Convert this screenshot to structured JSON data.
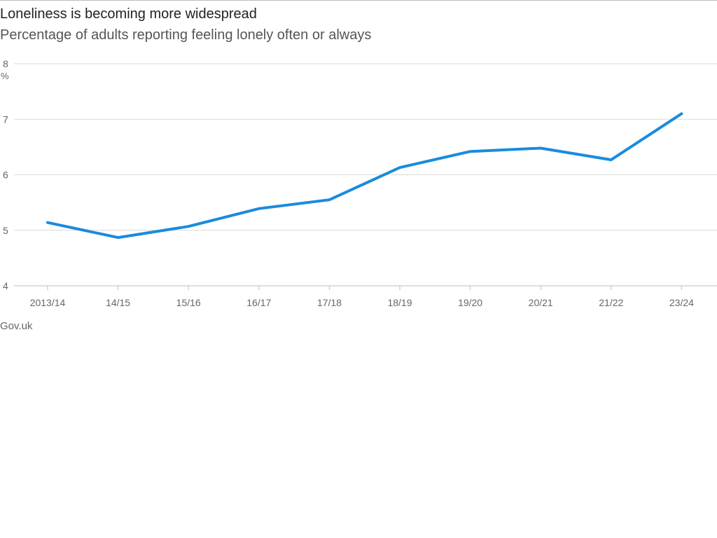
{
  "title": "Loneliness is becoming more widespread",
  "subtitle": "Percentage of adults reporting feeling lonely often or always",
  "source": "Gov.uk",
  "colors": {
    "line": "#1a8bdc",
    "grid": "#d9d9d9",
    "axis": "#bdbdbd",
    "text": "#666666"
  },
  "chart_data": {
    "type": "line",
    "title": "Loneliness is becoming more widespread",
    "subtitle": "Percentage of adults reporting feeling lonely often or always",
    "ylabel": "",
    "y_unit": "%",
    "ylim": [
      4,
      8
    ],
    "yticks": [
      4,
      5,
      6,
      7,
      8
    ],
    "grid": true,
    "categories": [
      "2013/14",
      "14/15",
      "15/16",
      "16/17",
      "17/18",
      "18/19",
      "19/20",
      "20/21",
      "21/22",
      "23/24"
    ],
    "series": [
      {
        "values": [
          5.14,
          4.87,
          5.07,
          5.39,
          5.55,
          6.13,
          6.42,
          6.48,
          6.27,
          7.1
        ]
      }
    ]
  }
}
